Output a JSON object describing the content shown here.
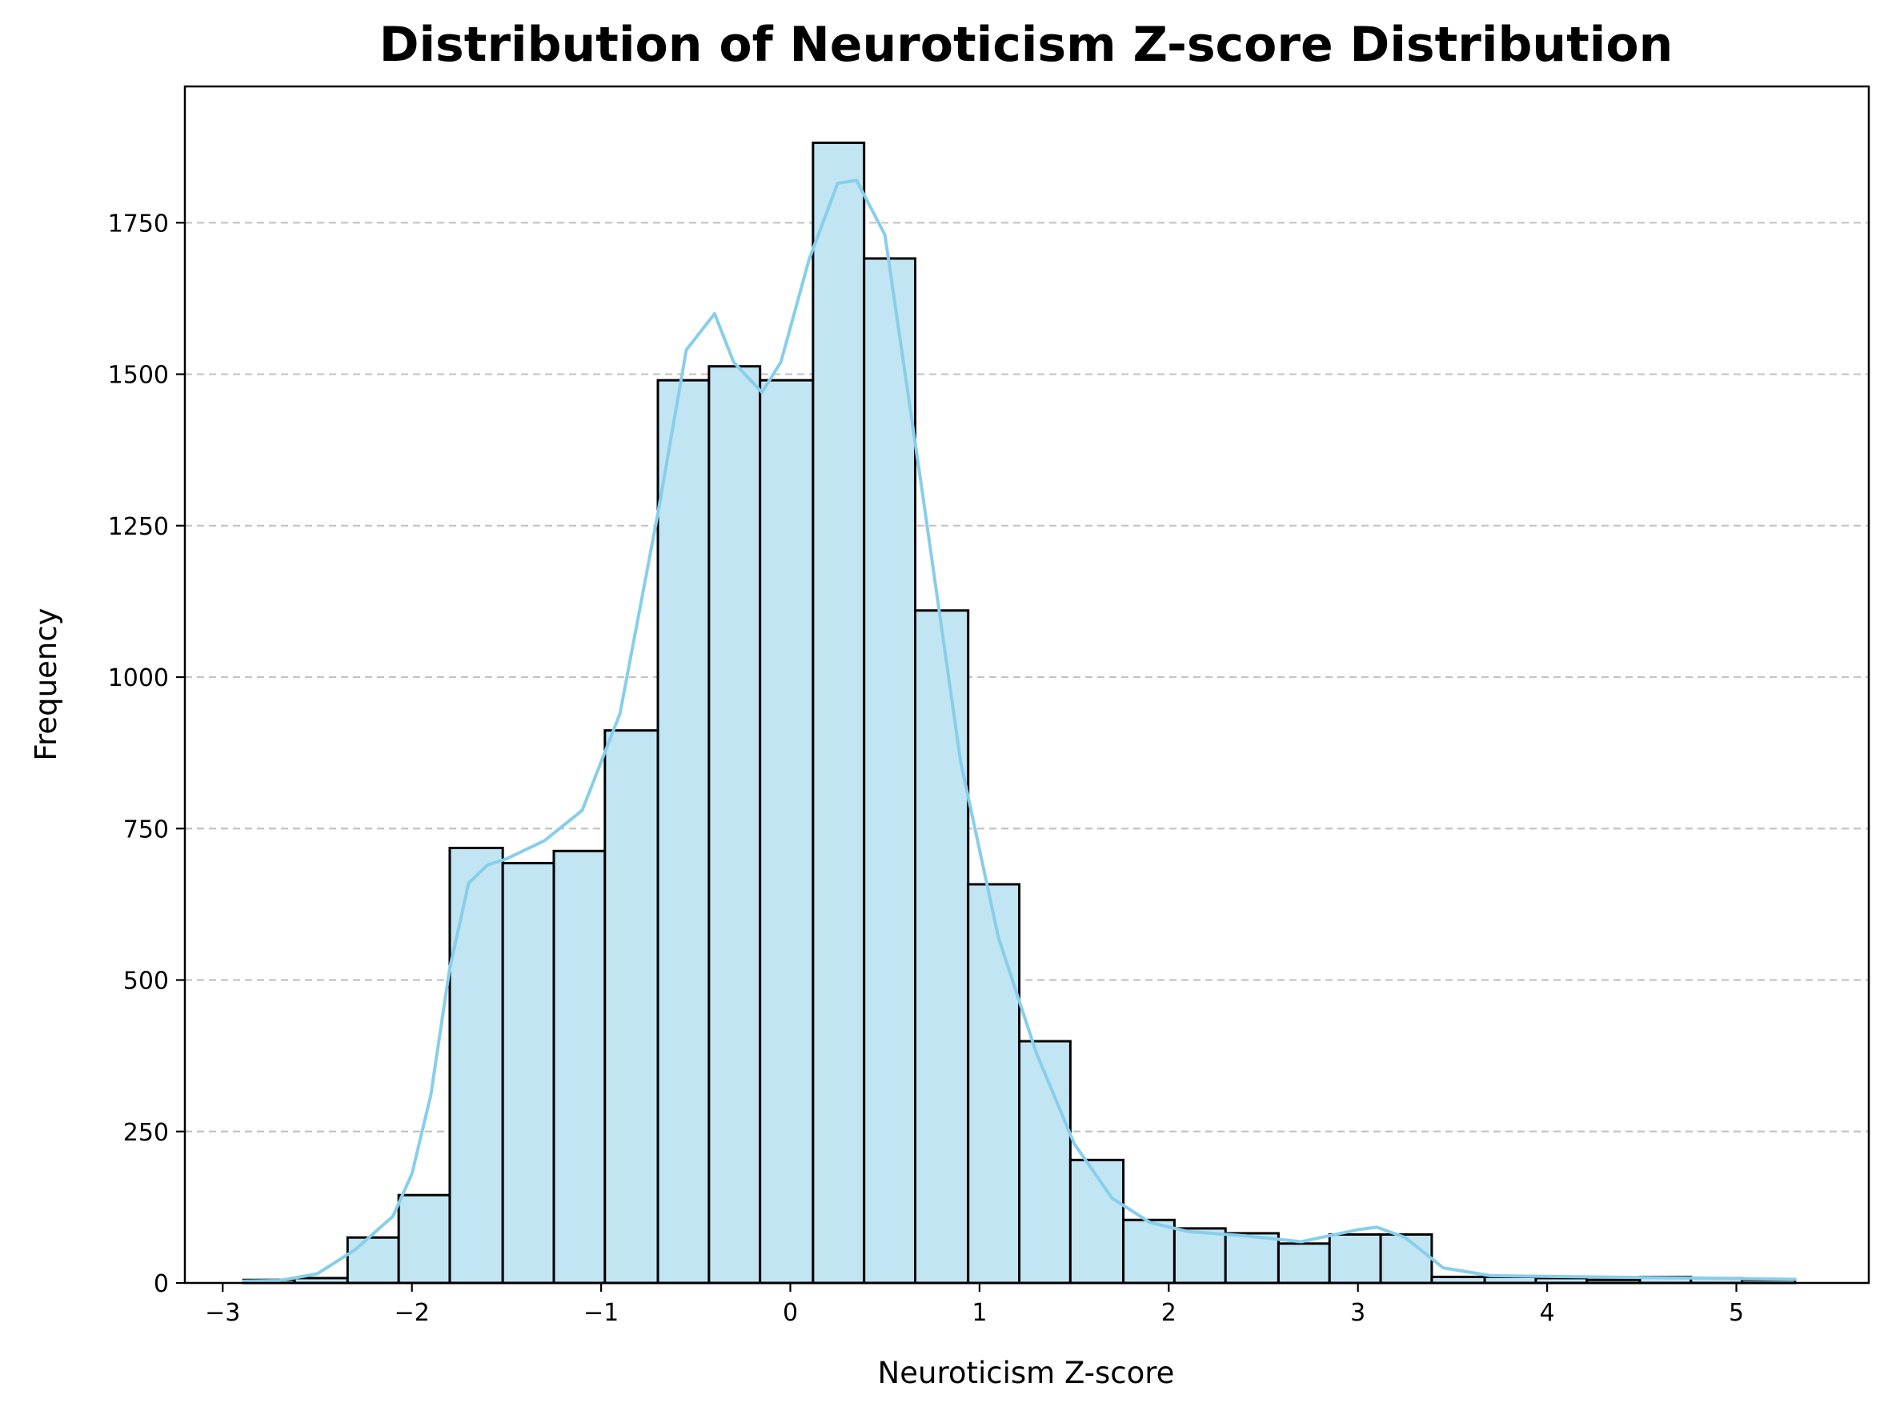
{
  "chart_data": {
    "type": "bar",
    "title": "Distribution of Neuroticism Z-score Distribution",
    "xlabel": "Neuroticism Z-score",
    "ylabel": "Frequency",
    "xlim": [
      -3.2,
      5.7
    ],
    "ylim": [
      0,
      1975
    ],
    "x_ticks": [
      -3,
      -2,
      -1,
      0,
      1,
      2,
      3,
      4,
      5
    ],
    "x_tick_labels": [
      "−3",
      "−2",
      "−1",
      "0",
      "1",
      "2",
      "3",
      "4",
      "5"
    ],
    "y_ticks": [
      0,
      250,
      500,
      750,
      1000,
      1250,
      1500,
      1750
    ],
    "y_tick_labels": [
      "0",
      "250",
      "500",
      "750",
      "1000",
      "1250",
      "1500",
      "1750"
    ],
    "grid": "y-axis dashed",
    "bin_edges": [
      -2.89,
      -2.62,
      -2.34,
      -2.07,
      -1.8,
      -1.52,
      -1.25,
      -0.98,
      -0.7,
      -0.43,
      -0.16,
      0.12,
      0.39,
      0.66,
      0.94,
      1.21,
      1.48,
      1.76,
      2.03,
      2.3,
      2.58,
      2.85,
      3.12,
      3.39,
      3.67,
      3.94,
      4.21,
      4.49,
      4.76,
      5.03,
      5.31
    ],
    "values": [
      5,
      8,
      75,
      145,
      718,
      693,
      713,
      912,
      1490,
      1513,
      1490,
      1882,
      1691,
      1110,
      658,
      399,
      203,
      104,
      90,
      82,
      65,
      80,
      80,
      10,
      10,
      8,
      5,
      10,
      8,
      5
    ],
    "kde": {
      "x": [
        -2.89,
        -2.7,
        -2.5,
        -2.3,
        -2.1,
        -2.0,
        -1.9,
        -1.8,
        -1.7,
        -1.6,
        -1.5,
        -1.3,
        -1.1,
        -0.9,
        -0.7,
        -0.55,
        -0.4,
        -0.3,
        -0.15,
        -0.05,
        0.1,
        0.25,
        0.35,
        0.5,
        0.7,
        0.9,
        1.1,
        1.3,
        1.5,
        1.7,
        1.9,
        2.1,
        2.4,
        2.7,
        3.0,
        3.1,
        3.25,
        3.45,
        3.7,
        4.2,
        4.8,
        5.31
      ],
      "y": [
        3,
        4,
        15,
        55,
        110,
        180,
        310,
        520,
        660,
        690,
        700,
        730,
        780,
        940,
        1270,
        1540,
        1600,
        1520,
        1470,
        1520,
        1690,
        1815,
        1820,
        1730,
        1300,
        860,
        570,
        380,
        230,
        140,
        100,
        85,
        78,
        68,
        88,
        92,
        75,
        25,
        12,
        10,
        8,
        6
      ],
      "color": "#87ceeb"
    },
    "bar_color": "#c2e5f3",
    "edge_color": "#000000"
  }
}
